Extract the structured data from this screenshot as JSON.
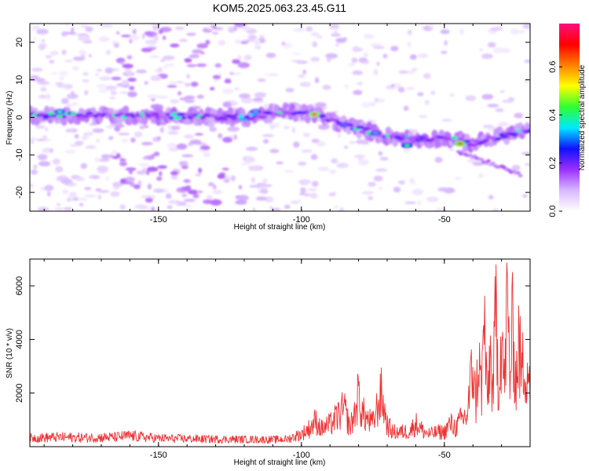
{
  "figure_title": "KOM5.2025.063.23.45.G11",
  "colors": {
    "trace": "#ee3333",
    "frame": "#000000"
  },
  "chart_data": [
    {
      "type": "heatmap",
      "title": "",
      "xlabel": "Height of straight line (km)",
      "ylabel": "Frequency (Hz)",
      "xlim": [
        -195,
        -20
      ],
      "ylim": [
        -25,
        25
      ],
      "xticks": [
        -150,
        -100,
        -50
      ],
      "yticks": [
        -20,
        -10,
        0,
        10,
        20
      ],
      "colorbar": {
        "label": "Normalized spectral amplitude",
        "range": [
          0.0,
          0.78
        ],
        "ticks": [
          0.0,
          0.2,
          0.4,
          0.6
        ],
        "colormap": [
          "#ffffff",
          "#d8b8ff",
          "#9a30ff",
          "#1010ff",
          "#00e8ff",
          "#30ff30",
          "#ffff00",
          "#ff8000",
          "#ff0000",
          "#ff1080"
        ]
      },
      "ridge": {
        "description_points_x": [
          -195,
          -180,
          -160,
          -140,
          -120,
          -105,
          -95,
          -85,
          -70,
          -60,
          -50,
          -40,
          -30,
          -20
        ],
        "frequency_hz": [
          0.5,
          0.5,
          0.5,
          0.3,
          0.0,
          1.5,
          0.8,
          -2.0,
          -5.0,
          -6.0,
          -5.5,
          -7.0,
          -5.0,
          -3.0
        ]
      }
    },
    {
      "type": "line",
      "title": "",
      "xlabel": "Height of straight line (km)",
      "ylabel": "SNR (10 * v/v)",
      "xlim": [
        -195,
        -20
      ],
      "ylim": [
        0,
        7000
      ],
      "xticks": [
        -150,
        -100,
        -50
      ],
      "yticks": [
        2000,
        4000,
        6000
      ],
      "series": [
        {
          "x": [
            -195,
            -185,
            -175,
            -165,
            -160,
            -150,
            -140,
            -130,
            -120,
            -110,
            -105,
            -100,
            -97,
            -95,
            -93,
            -90,
            -87,
            -85,
            -83,
            -81,
            -80,
            -79,
            -77,
            -75,
            -73,
            -72,
            -70,
            -68,
            -65,
            -62,
            -60,
            -57,
            -55,
            -52,
            -50,
            -48,
            -46,
            -44,
            -42,
            -40,
            -39,
            -38,
            -37,
            -36,
            -35,
            -34,
            -33,
            -32,
            -31,
            -30,
            -29,
            -28,
            -27,
            -26,
            -25,
            -24,
            -23,
            -22,
            -21,
            -20
          ],
          "y": [
            420,
            450,
            430,
            460,
            520,
            400,
            380,
            360,
            350,
            340,
            360,
            600,
            900,
            1250,
            850,
            1050,
            1500,
            1800,
            900,
            1750,
            2600,
            1700,
            1300,
            1100,
            2100,
            2500,
            1050,
            700,
            700,
            750,
            1100,
            700,
            600,
            700,
            700,
            1100,
            900,
            1300,
            1500,
            4000,
            2000,
            4300,
            2600,
            6300,
            1800,
            4600,
            2500,
            6500,
            3000,
            5600,
            2800,
            7000,
            3300,
            5900,
            3000,
            4900,
            3500,
            4100,
            3800,
            3600
          ]
        }
      ]
    }
  ]
}
